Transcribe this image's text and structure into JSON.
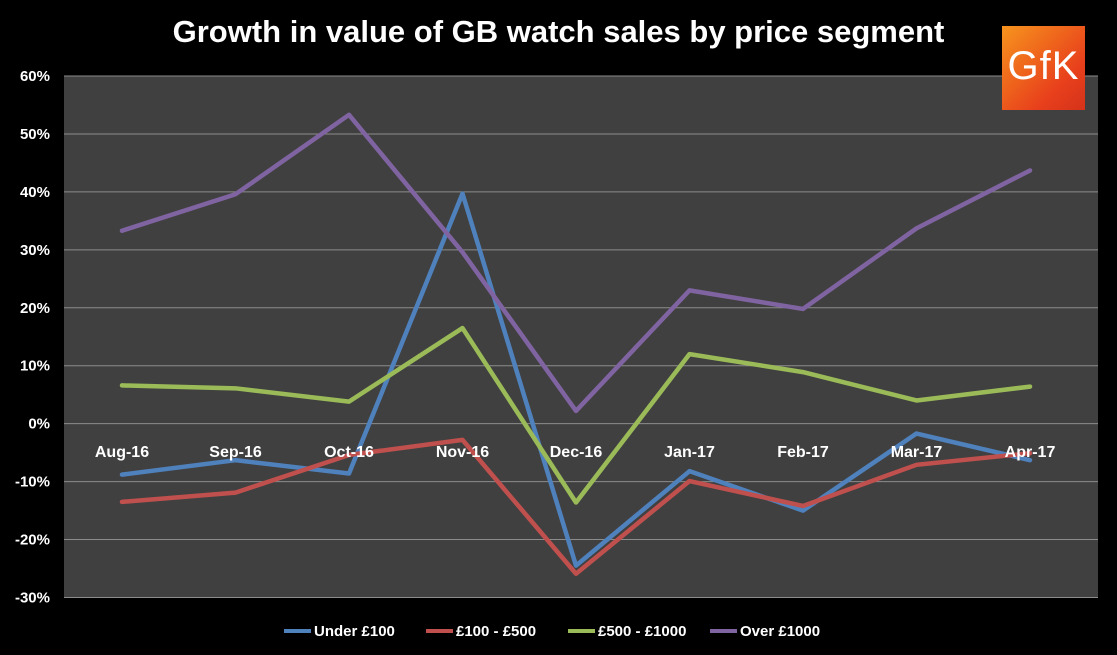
{
  "chart_data": {
    "type": "line",
    "title": "Growth in value of GB watch sales by price segment",
    "logo_text": "GfK",
    "categories": [
      "Aug-16",
      "Sep-16",
      "Oct-16",
      "Nov-16",
      "Dec-16",
      "Jan-17",
      "Feb-17",
      "Mar-17",
      "Apr-17"
    ],
    "ylim": [
      -30,
      60
    ],
    "yticks": [
      "60%",
      "50%",
      "40%",
      "30%",
      "20%",
      "10%",
      "0%",
      "-10%",
      "-20%",
      "-30%"
    ],
    "ytick_values": [
      60,
      50,
      40,
      30,
      20,
      10,
      0,
      -10,
      -20,
      -30
    ],
    "grid": true,
    "legend_position": "bottom",
    "background": "#404040",
    "series": [
      {
        "name": "Under £100",
        "color": "#4f81bd",
        "values": [
          -8.8,
          -6.3,
          -8.6,
          39.7,
          -24.5,
          -8.2,
          -15.0,
          -1.7,
          -6.3
        ]
      },
      {
        "name": "£100 - £500",
        "color": "#c0504d",
        "values": [
          -13.5,
          -11.9,
          -5.4,
          -2.8,
          -25.9,
          -9.9,
          -14.2,
          -7.1,
          -5.1
        ]
      },
      {
        "name": "£500 - £1000",
        "color": "#9bbb59",
        "values": [
          6.6,
          6.1,
          3.8,
          16.5,
          -13.6,
          12.0,
          8.9,
          4.0,
          6.4
        ]
      },
      {
        "name": "Over £1000",
        "color": "#8064a2",
        "values": [
          33.3,
          39.6,
          53.3,
          29.6,
          2.2,
          23.0,
          19.8,
          33.7,
          43.7
        ]
      }
    ]
  }
}
